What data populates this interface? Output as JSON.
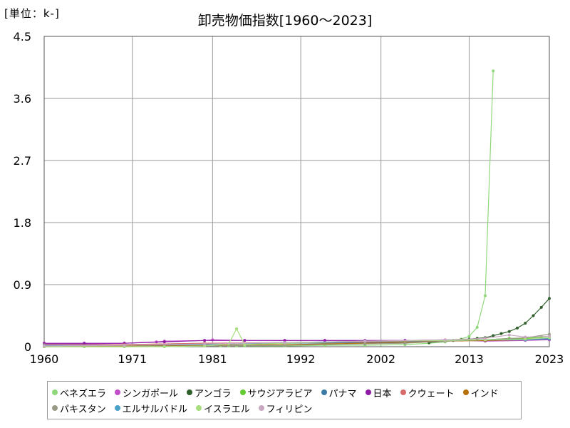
{
  "header": {
    "unit": "[単位：k-]",
    "title": "卸売物価指数[1960～2023]"
  },
  "chart_data": {
    "type": "line",
    "title": "卸売物価指数[1960～2023]",
    "unit_label": "[単位：k-]",
    "xlim": [
      1960,
      2023
    ],
    "ylim": [
      0,
      4.5
    ],
    "xticks": [
      1960,
      1971,
      1981,
      1992,
      2002,
      2013,
      2023
    ],
    "yticks": [
      0,
      0.9,
      1.8,
      2.7,
      3.6,
      4.5
    ],
    "ytick_labels": [
      "0",
      "0.9",
      "1.8",
      "2.7",
      "3.6",
      "4.5"
    ],
    "grid": true,
    "legend_position": "bottom",
    "series": [
      {
        "name": "ベネズエラ",
        "color": "#8fd87a",
        "x": [
          1960,
          1965,
          1970,
          1975,
          1980,
          1982,
          1983,
          1984,
          1985,
          1990,
          1995,
          2000,
          2005,
          2008,
          2010,
          2011,
          2012,
          2013,
          2014,
          2015,
          2016
        ],
        "y": [
          0,
          0,
          0,
          0,
          0.01,
          0.01,
          0.01,
          0.01,
          0.01,
          0.01,
          0.02,
          0.02,
          0.03,
          0.05,
          0.07,
          0.09,
          0.11,
          0.15,
          0.28,
          0.74,
          4.0
        ]
      },
      {
        "name": "シンガポール",
        "color": "#c24fc7",
        "x": [
          1960,
          1965,
          1970,
          1974,
          1975,
          1980,
          1981,
          1985,
          1990,
          1995,
          2000,
          2005,
          2010,
          2015,
          2020,
          2023
        ],
        "y": [
          0.04,
          0.04,
          0.05,
          0.07,
          0.08,
          0.09,
          0.1,
          0.09,
          0.09,
          0.09,
          0.09,
          0.09,
          0.1,
          0.08,
          0.09,
          0.1
        ]
      },
      {
        "name": "アンゴラ",
        "color": "#2e5e2a",
        "x": [
          2008,
          2010,
          2011,
          2012,
          2013,
          2014,
          2015,
          2016,
          2017,
          2018,
          2019,
          2020,
          2021,
          2022,
          2023
        ],
        "y": [
          0.06,
          0.08,
          0.09,
          0.1,
          0.11,
          0.12,
          0.13,
          0.16,
          0.19,
          0.22,
          0.27,
          0.34,
          0.45,
          0.57,
          0.7
        ]
      },
      {
        "name": "サウジアラビア",
        "color": "#62cc32",
        "x": [
          1960,
          1970,
          1980,
          1990,
          2000,
          2005,
          2010,
          2013,
          2015,
          2018,
          2020,
          2022,
          2023
        ],
        "y": [
          0.03,
          0.03,
          0.05,
          0.05,
          0.06,
          0.07,
          0.09,
          0.1,
          0.1,
          0.12,
          0.12,
          0.14,
          0.15
        ]
      },
      {
        "name": "パナマ",
        "color": "#3a7aa6",
        "x": [
          1960,
          1970,
          1980,
          1990,
          2000,
          2005,
          2010,
          2015,
          2020,
          2023
        ],
        "y": [
          0.02,
          0.02,
          0.04,
          0.05,
          0.06,
          0.07,
          0.09,
          0.09,
          0.1,
          0.11
        ]
      },
      {
        "name": "日本",
        "color": "#8e1aa6",
        "x": [
          1960,
          1965,
          1970,
          1975,
          1980,
          1985,
          1990,
          1995,
          2000,
          2005,
          2010,
          2015,
          2020,
          2023
        ],
        "y": [
          0.05,
          0.05,
          0.05,
          0.07,
          0.09,
          0.09,
          0.09,
          0.09,
          0.09,
          0.09,
          0.09,
          0.1,
          0.1,
          0.12
        ]
      },
      {
        "name": "クウェート",
        "color": "#d96a6a",
        "x": [
          1960,
          1970,
          1980,
          1990,
          2000,
          2010,
          2015,
          2020,
          2023
        ],
        "y": [
          0.03,
          0.03,
          0.05,
          0.06,
          0.07,
          0.09,
          0.1,
          0.11,
          0.12
        ]
      },
      {
        "name": "インド",
        "color": "#b5700a",
        "x": [
          1960,
          1970,
          1980,
          1990,
          2000,
          2005,
          2010,
          2015,
          2020,
          2023
        ],
        "y": [
          0.0,
          0.01,
          0.02,
          0.03,
          0.05,
          0.06,
          0.08,
          0.09,
          0.1,
          0.13
        ]
      },
      {
        "name": "パキスタン",
        "color": "#9a9a88",
        "x": [
          1960,
          1970,
          1980,
          1990,
          2000,
          2005,
          2010,
          2015,
          2020,
          2023
        ],
        "y": [
          0.0,
          0.0,
          0.01,
          0.02,
          0.04,
          0.05,
          0.08,
          0.1,
          0.13,
          0.18
        ]
      },
      {
        "name": "エルサルバドル",
        "color": "#4aa3c7",
        "x": [
          1960,
          1970,
          1980,
          1990,
          2000,
          2010,
          2015,
          2020,
          2023
        ],
        "y": [
          0.02,
          0.02,
          0.03,
          0.06,
          0.08,
          0.09,
          0.1,
          0.1,
          0.12
        ]
      },
      {
        "name": "イスラエル",
        "color": "#a8de7e",
        "x": [
          1960,
          1970,
          1975,
          1980,
          1983,
          1984,
          1985,
          1990,
          2000,
          2010,
          2015,
          2020,
          2023
        ],
        "y": [
          0,
          0,
          0,
          0.01,
          0.04,
          0.26,
          0.03,
          0.05,
          0.08,
          0.09,
          0.1,
          0.11,
          0.13
        ]
      },
      {
        "name": "フィリピン",
        "color": "#c8a8c0",
        "x": [
          1960,
          1970,
          1980,
          1990,
          2000,
          2010,
          2015,
          2018,
          2020,
          2023
        ],
        "y": [
          0.01,
          0.02,
          0.04,
          0.06,
          0.08,
          0.1,
          0.12,
          0.17,
          0.14,
          0.15
        ]
      }
    ]
  }
}
